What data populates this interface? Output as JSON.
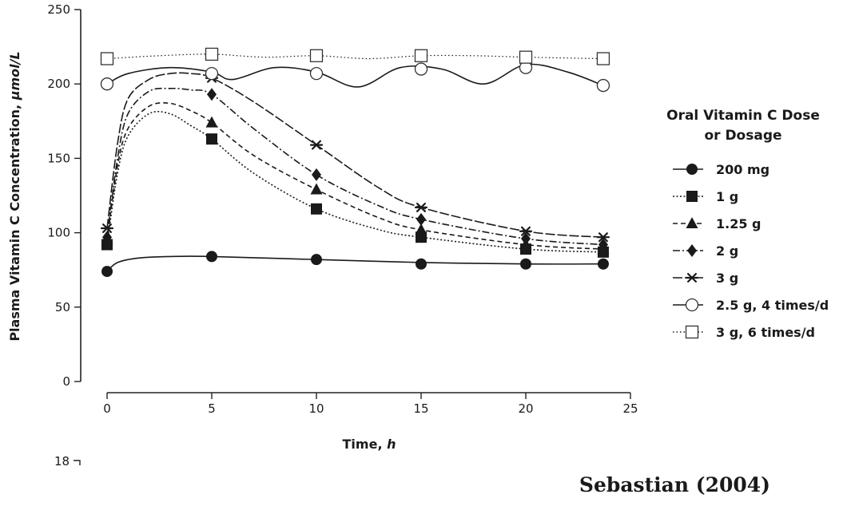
{
  "chart_data": {
    "type": "line",
    "title": "",
    "xlabel": "Time, ",
    "xlabel_unit": "h",
    "ylabel": "Plasma Vitamin C Concentration, ",
    "ylabel_unit": "μmol/L",
    "xlim": [
      0,
      25
    ],
    "ylim": [
      0,
      250
    ],
    "xticks": [
      "0",
      "5",
      "10",
      "15",
      "20",
      "25"
    ],
    "yticks": [
      "0",
      "50",
      "100",
      "150",
      "200",
      "250"
    ],
    "grid": false,
    "legend_title_line1": "Oral Vitamin C Dose",
    "legend_title_line2": "or Dosage",
    "legend_position": "right",
    "series": [
      {
        "name": "200 mg",
        "marker": "circle-filled",
        "dash": "solid",
        "points": [
          [
            0,
            74
          ],
          [
            5,
            84
          ],
          [
            10,
            82
          ],
          [
            15,
            79
          ],
          [
            20,
            79
          ],
          [
            23.7,
            79
          ]
        ],
        "curve": [
          [
            0,
            74
          ],
          [
            0.5,
            80
          ],
          [
            1.5,
            83
          ],
          [
            3,
            84
          ],
          [
            5,
            84
          ],
          [
            10,
            82
          ],
          [
            15,
            80
          ],
          [
            20,
            79
          ],
          [
            23.7,
            79
          ]
        ]
      },
      {
        "name": "1 g",
        "marker": "square-filled",
        "dash": "dotted-short",
        "points": [
          [
            0,
            92
          ],
          [
            5,
            163
          ],
          [
            10,
            116
          ],
          [
            15,
            97
          ],
          [
            20,
            89
          ],
          [
            23.7,
            87
          ]
        ],
        "curve": [
          [
            0,
            92
          ],
          [
            0.5,
            140
          ],
          [
            1,
            165
          ],
          [
            2,
            180
          ],
          [
            3,
            180
          ],
          [
            4,
            172
          ],
          [
            5,
            163
          ],
          [
            7,
            140
          ],
          [
            10,
            116
          ],
          [
            13,
            102
          ],
          [
            15,
            97
          ],
          [
            20,
            89
          ],
          [
            23.7,
            87
          ]
        ]
      },
      {
        "name": "1.25 g",
        "marker": "triangle-filled",
        "dash": "dashed",
        "points": [
          [
            0,
            95
          ],
          [
            5,
            174
          ],
          [
            10,
            129
          ],
          [
            15,
            102
          ],
          [
            20,
            92
          ],
          [
            23.7,
            89
          ]
        ],
        "curve": [
          [
            0,
            95
          ],
          [
            0.5,
            145
          ],
          [
            1,
            170
          ],
          [
            2,
            185
          ],
          [
            3,
            187
          ],
          [
            4,
            182
          ],
          [
            5,
            174
          ],
          [
            7,
            152
          ],
          [
            10,
            129
          ],
          [
            13,
            110
          ],
          [
            15,
            102
          ],
          [
            20,
            92
          ],
          [
            23.7,
            89
          ]
        ]
      },
      {
        "name": "2 g",
        "marker": "diamond-filled",
        "dash": "dashdot",
        "points": [
          [
            0,
            97
          ],
          [
            5,
            193
          ],
          [
            10,
            139
          ],
          [
            15,
            109
          ],
          [
            20,
            96
          ],
          [
            23.7,
            92
          ]
        ],
        "curve": [
          [
            0,
            97
          ],
          [
            0.5,
            150
          ],
          [
            1,
            180
          ],
          [
            2,
            195
          ],
          [
            3,
            197
          ],
          [
            4,
            196
          ],
          [
            5,
            193
          ],
          [
            7,
            170
          ],
          [
            10,
            139
          ],
          [
            13,
            118
          ],
          [
            15,
            109
          ],
          [
            20,
            96
          ],
          [
            23.7,
            92
          ]
        ]
      },
      {
        "name": "3 g",
        "marker": "asterisk",
        "dash": "longdash",
        "points": [
          [
            0,
            103
          ],
          [
            5,
            204
          ],
          [
            10,
            159
          ],
          [
            15,
            117
          ],
          [
            20,
            101
          ],
          [
            23.7,
            97
          ]
        ],
        "curve": [
          [
            0,
            103
          ],
          [
            0.5,
            160
          ],
          [
            1,
            190
          ],
          [
            2,
            203
          ],
          [
            3,
            207
          ],
          [
            4,
            207
          ],
          [
            5,
            204
          ],
          [
            7,
            188
          ],
          [
            10,
            159
          ],
          [
            13,
            130
          ],
          [
            15,
            117
          ],
          [
            20,
            101
          ],
          [
            23.7,
            97
          ]
        ]
      },
      {
        "name": "2.5 g, 4 times/d",
        "marker": "circle-open",
        "dash": "solid",
        "points": [
          [
            0,
            200
          ],
          [
            5,
            207
          ],
          [
            10,
            207
          ],
          [
            15,
            210
          ],
          [
            20,
            211
          ],
          [
            23.7,
            199
          ]
        ],
        "curve": [
          [
            0,
            200
          ],
          [
            1,
            207
          ],
          [
            3,
            211
          ],
          [
            5,
            208
          ],
          [
            6,
            203
          ],
          [
            8,
            211
          ],
          [
            10,
            208
          ],
          [
            12,
            198
          ],
          [
            14,
            211
          ],
          [
            16,
            210
          ],
          [
            18,
            200
          ],
          [
            20,
            213
          ],
          [
            22,
            208
          ],
          [
            23.7,
            199
          ]
        ]
      },
      {
        "name": "3 g, 6 times/d",
        "marker": "square-open",
        "dash": "dotted",
        "points": [
          [
            0,
            217
          ],
          [
            5,
            220
          ],
          [
            10,
            219
          ],
          [
            15,
            219
          ],
          [
            20,
            218
          ],
          [
            23.7,
            217
          ]
        ],
        "curve": [
          [
            0,
            217
          ],
          [
            2.5,
            219
          ],
          [
            5,
            220
          ],
          [
            7.5,
            218
          ],
          [
            10,
            219
          ],
          [
            12.5,
            217
          ],
          [
            15,
            219
          ],
          [
            17.5,
            219
          ],
          [
            20,
            218
          ],
          [
            23.7,
            217
          ]
        ]
      }
    ]
  },
  "page_marks": {
    "stray_label": "18",
    "credit": "Sebastian (2004)"
  }
}
